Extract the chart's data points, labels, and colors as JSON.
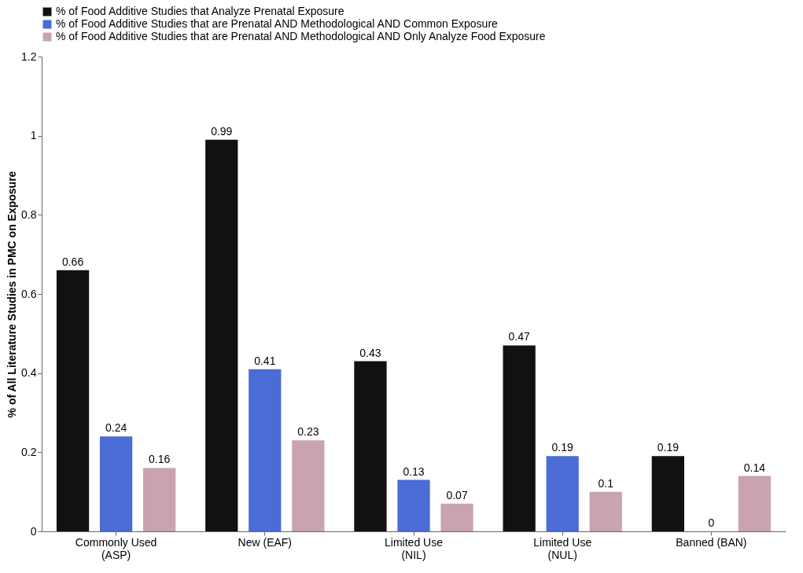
{
  "chart_data": {
    "type": "bar",
    "ylabel": "% of All Literature Studies in PMC on Exposure",
    "categories": [
      "Commonly Used (ASP)",
      "New (EAF)",
      "Limited Use (NIL)",
      "Limited Use (NUL)",
      "Banned (BAN)"
    ],
    "series": [
      {
        "name": "% of Food Additive Studies that Analyze Prenatal Exposure",
        "color": "#111111",
        "values": [
          0.66,
          0.99,
          0.43,
          0.47,
          0.19
        ]
      },
      {
        "name": "% of Food Additive Studies that are Prenatal AND Methodological AND Common Exposure",
        "color": "#4a6cd4",
        "values": [
          0.24,
          0.41,
          0.13,
          0.19,
          0
        ]
      },
      {
        "name": "% of Food Additive Studies that are Prenatal AND Methodological AND Only Analyze Food Exposure",
        "color": "#c9a3ad",
        "values": [
          0.16,
          0.23,
          0.07,
          0.1,
          0.14
        ]
      }
    ],
    "ylim": [
      0,
      1.2
    ],
    "yticks": [
      0,
      0.2,
      0.4,
      0.6,
      0.8,
      1,
      1.2
    ],
    "grid": false,
    "legend": "top left",
    "data_labels": true
  }
}
